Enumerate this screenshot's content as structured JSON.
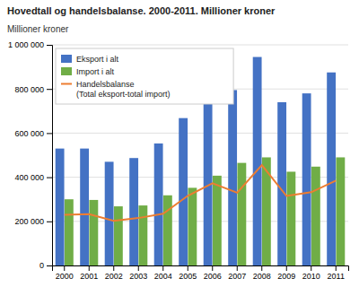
{
  "chart_data": {
    "type": "bar",
    "title": "Hovedtall og handelsbalanse. 2000-2011. Millioner kroner",
    "ylabel": "Millioner kroner",
    "categories": [
      "2000",
      "2001",
      "2002",
      "2003",
      "2004",
      "2005",
      "2006",
      "2007",
      "2008",
      "2009",
      "2010",
      "2011"
    ],
    "series": [
      {
        "name": "Eksport i alt",
        "type": "bar",
        "color": "#4472C4",
        "values": [
          530000,
          530000,
          470000,
          487000,
          553000,
          668000,
          780000,
          795000,
          945000,
          740000,
          780000,
          875000
        ]
      },
      {
        "name": "Import i alt",
        "type": "bar",
        "color": "#70AD47",
        "values": [
          300000,
          297000,
          268000,
          272000,
          318000,
          352000,
          407000,
          465000,
          490000,
          425000,
          448000,
          490000
        ]
      },
      {
        "name": "Handelsbalanse\n(Total eksport-total import)",
        "type": "line",
        "color": "#ED7D31",
        "values": [
          230000,
          233000,
          202000,
          215000,
          235000,
          316000,
          373000,
          330000,
          455000,
          315000,
          332000,
          385000
        ]
      }
    ],
    "ylim": [
      0,
      1000000
    ],
    "yticks": [
      0,
      {
        "value": 200000,
        "label": "200 000"
      },
      {
        "value": 400000,
        "label": "400 000"
      },
      {
        "value": 600000,
        "label": "600 000"
      },
      {
        "value": 800000,
        "label": "800 000"
      },
      {
        "value": 1000000,
        "label": "1 000 000"
      }
    ],
    "grid": true,
    "legend": "upper left"
  }
}
